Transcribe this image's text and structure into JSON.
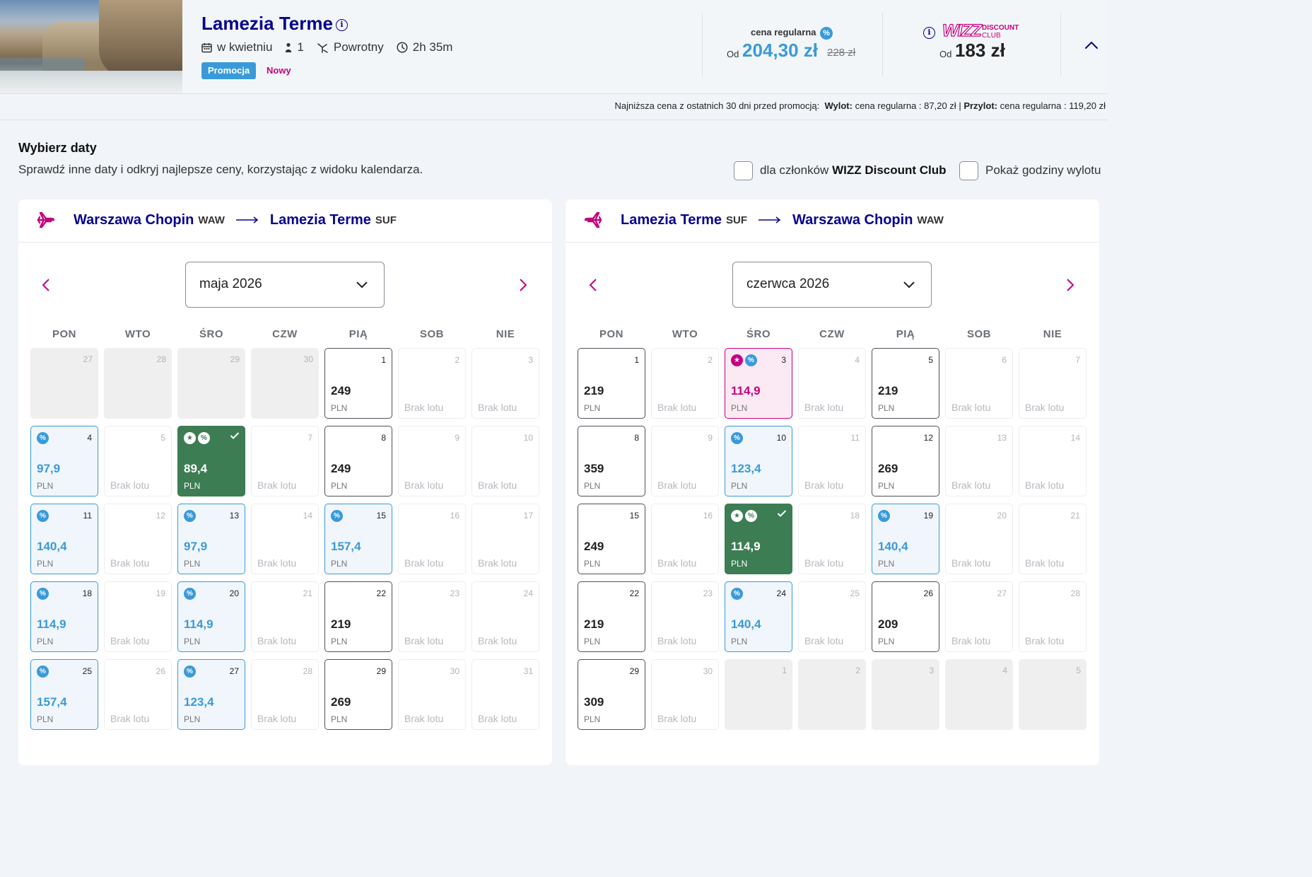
{
  "header": {
    "destination": "Lamezia Terme",
    "meta": {
      "when": "w kwietniu",
      "passengers": "1",
      "trip_type": "Powrotny",
      "duration": "2h 35m"
    },
    "badges": {
      "promo": "Promocja",
      "new": "Nowy"
    },
    "regular": {
      "label": "cena regularna",
      "od": "Od",
      "price": "204,30 zł",
      "old_price": "228 zł"
    },
    "wdc": {
      "logo_main": "WIZZ",
      "logo_top": "DISCOUNT",
      "logo_bottom": "CLUB",
      "od": "Od",
      "price": "183 zł"
    }
  },
  "lowest": {
    "prefix": "Najniższa cena z ostatnich 30 dni przed promocją:",
    "out_label": "Wylot:",
    "out_value": "cena regularna : 87,20 zł",
    "sep": "|",
    "in_label": "Przylot:",
    "in_value": "cena regularna : 119,20 zł"
  },
  "section": {
    "title": "Wybierz daty",
    "subtitle": "Sprawdź inne daty i odkryj najlepsze ceny, korzystając z widoku kalendarza.",
    "wdc_checkbox_prefix": "dla członków",
    "wdc_checkbox_bold": "WIZZ Discount Club",
    "hours_checkbox": "Pokaż godziny wylotu"
  },
  "weekdays": [
    "PON",
    "WTO",
    "ŚRO",
    "CZW",
    "PIĄ",
    "SOB",
    "NIE"
  ],
  "labels": {
    "currency": "PLN",
    "no_flight": "Brak lotu"
  },
  "colors": {
    "brand_navy": "#06038d",
    "brand_magenta": "#c6007e",
    "promo_blue": "#3a9ad9",
    "selected_green": "#3c7d54"
  },
  "outbound": {
    "from": "Warszawa Chopin",
    "from_code": "WAW",
    "to": "Lamezia Terme",
    "to_code": "SUF",
    "month": "maja 2026",
    "days": [
      {
        "d": "27",
        "t": "out"
      },
      {
        "d": "28",
        "t": "out"
      },
      {
        "d": "29",
        "t": "out"
      },
      {
        "d": "30",
        "t": "out"
      },
      {
        "d": "1",
        "t": "reg",
        "p": "249"
      },
      {
        "d": "2",
        "t": "nofl"
      },
      {
        "d": "3",
        "t": "nofl"
      },
      {
        "d": "4",
        "t": "promo",
        "p": "97,9"
      },
      {
        "d": "5",
        "t": "nofl"
      },
      {
        "d": "6",
        "t": "sel",
        "p": "89,4"
      },
      {
        "d": "7",
        "t": "nofl"
      },
      {
        "d": "8",
        "t": "reg",
        "p": "249"
      },
      {
        "d": "9",
        "t": "nofl"
      },
      {
        "d": "10",
        "t": "nofl"
      },
      {
        "d": "11",
        "t": "promo",
        "p": "140,4"
      },
      {
        "d": "12",
        "t": "nofl"
      },
      {
        "d": "13",
        "t": "promo",
        "p": "97,9"
      },
      {
        "d": "14",
        "t": "nofl"
      },
      {
        "d": "15",
        "t": "promo",
        "p": "157,4"
      },
      {
        "d": "16",
        "t": "nofl"
      },
      {
        "d": "17",
        "t": "nofl"
      },
      {
        "d": "18",
        "t": "promo",
        "p": "114,9"
      },
      {
        "d": "19",
        "t": "nofl"
      },
      {
        "d": "20",
        "t": "promo",
        "p": "114,9"
      },
      {
        "d": "21",
        "t": "nofl"
      },
      {
        "d": "22",
        "t": "reg",
        "p": "219"
      },
      {
        "d": "23",
        "t": "nofl"
      },
      {
        "d": "24",
        "t": "nofl"
      },
      {
        "d": "25",
        "t": "promo",
        "p": "157,4"
      },
      {
        "d": "26",
        "t": "nofl"
      },
      {
        "d": "27",
        "t": "promo",
        "p": "123,4"
      },
      {
        "d": "28",
        "t": "nofl"
      },
      {
        "d": "29",
        "t": "reg",
        "p": "269"
      },
      {
        "d": "30",
        "t": "nofl"
      },
      {
        "d": "31",
        "t": "nofl"
      }
    ]
  },
  "inbound": {
    "from": "Lamezia Terme",
    "from_code": "SUF",
    "to": "Warszawa Chopin",
    "to_code": "WAW",
    "month": "czerwca 2026",
    "days": [
      {
        "d": "1",
        "t": "reg",
        "p": "219"
      },
      {
        "d": "2",
        "t": "nofl"
      },
      {
        "d": "3",
        "t": "wdc",
        "p": "114,9"
      },
      {
        "d": "4",
        "t": "nofl"
      },
      {
        "d": "5",
        "t": "reg",
        "p": "219"
      },
      {
        "d": "6",
        "t": "nofl"
      },
      {
        "d": "7",
        "t": "nofl"
      },
      {
        "d": "8",
        "t": "reg",
        "p": "359"
      },
      {
        "d": "9",
        "t": "nofl"
      },
      {
        "d": "10",
        "t": "promo",
        "p": "123,4"
      },
      {
        "d": "11",
        "t": "nofl"
      },
      {
        "d": "12",
        "t": "reg",
        "p": "269"
      },
      {
        "d": "13",
        "t": "nofl"
      },
      {
        "d": "14",
        "t": "nofl"
      },
      {
        "d": "15",
        "t": "reg",
        "p": "249"
      },
      {
        "d": "16",
        "t": "nofl"
      },
      {
        "d": "17",
        "t": "sel",
        "p": "114,9"
      },
      {
        "d": "18",
        "t": "nofl"
      },
      {
        "d": "19",
        "t": "promo",
        "p": "140,4"
      },
      {
        "d": "20",
        "t": "nofl"
      },
      {
        "d": "21",
        "t": "nofl"
      },
      {
        "d": "22",
        "t": "reg",
        "p": "219"
      },
      {
        "d": "23",
        "t": "nofl"
      },
      {
        "d": "24",
        "t": "promo",
        "p": "140,4"
      },
      {
        "d": "25",
        "t": "nofl"
      },
      {
        "d": "26",
        "t": "reg",
        "p": "209"
      },
      {
        "d": "27",
        "t": "nofl"
      },
      {
        "d": "28",
        "t": "nofl"
      },
      {
        "d": "29",
        "t": "reg",
        "p": "309"
      },
      {
        "d": "30",
        "t": "nofl"
      },
      {
        "d": "1",
        "t": "out"
      },
      {
        "d": "2",
        "t": "out"
      },
      {
        "d": "3",
        "t": "out"
      },
      {
        "d": "4",
        "t": "out"
      },
      {
        "d": "5",
        "t": "out"
      }
    ]
  }
}
